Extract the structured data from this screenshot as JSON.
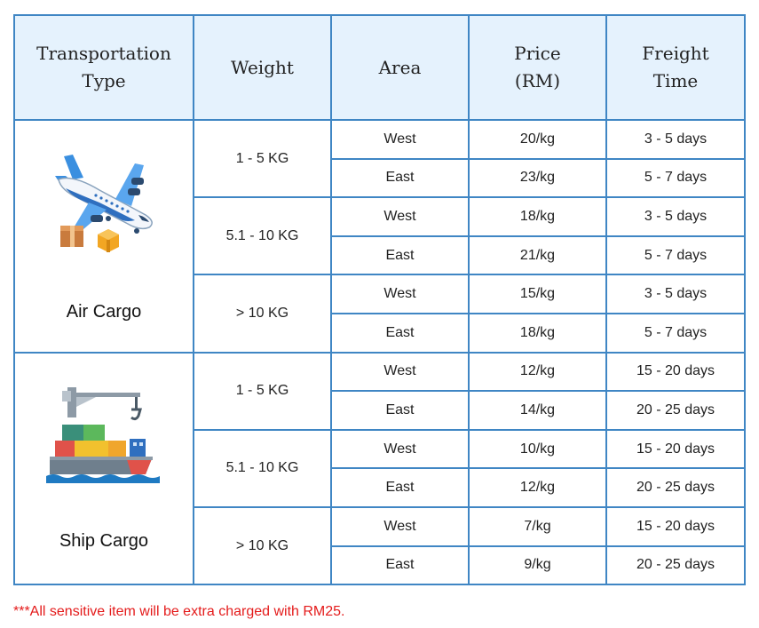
{
  "headers": {
    "type_line1": "Transportation",
    "type_line2": "Type",
    "weight": "Weight",
    "area": "Area",
    "price_line1": "Price",
    "price_line2": "(RM)",
    "freight_line1": "Freight",
    "freight_line2": "Time"
  },
  "air": {
    "label": "Air Cargo",
    "icon": "airplane-with-boxes-icon",
    "groups": [
      {
        "weight": "1 - 5 KG",
        "rows": [
          {
            "area": "West",
            "price": "20/kg",
            "time": "3 - 5 days"
          },
          {
            "area": "East",
            "price": "23/kg",
            "time": "5 - 7 days"
          }
        ]
      },
      {
        "weight": "5.1 - 10 KG",
        "rows": [
          {
            "area": "West",
            "price": "18/kg",
            "time": "3 - 5 days"
          },
          {
            "area": "East",
            "price": "21/kg",
            "time": "5 - 7 days"
          }
        ]
      },
      {
        "weight": "> 10 KG",
        "rows": [
          {
            "area": "West",
            "price": "15/kg",
            "time": "3 - 5 days"
          },
          {
            "area": "East",
            "price": "18/kg",
            "time": "5 - 7 days"
          }
        ]
      }
    ]
  },
  "ship": {
    "label": "Ship Cargo",
    "icon": "cargo-ship-with-crane-icon",
    "groups": [
      {
        "weight": "1 - 5 KG",
        "rows": [
          {
            "area": "West",
            "price": "12/kg",
            "time": "15 - 20 days"
          },
          {
            "area": "East",
            "price": "14/kg",
            "time": "20 - 25 days"
          }
        ]
      },
      {
        "weight": "5.1 - 10 KG",
        "rows": [
          {
            "area": "West",
            "price": "10/kg",
            "time": "15 - 20 days"
          },
          {
            "area": "East",
            "price": "12/kg",
            "time": "20 - 25 days"
          }
        ]
      },
      {
        "weight": "> 10 KG",
        "rows": [
          {
            "area": "West",
            "price": "7/kg",
            "time": "15 - 20 days"
          },
          {
            "area": "East",
            "price": "9/kg",
            "time": "20 - 25 days"
          }
        ]
      }
    ]
  },
  "note": "***All sensitive item will be extra charged with RM25.",
  "colors": {
    "border": "#3f86c4",
    "header_bg": "#e5f2fd",
    "note": "#e41b1b"
  }
}
